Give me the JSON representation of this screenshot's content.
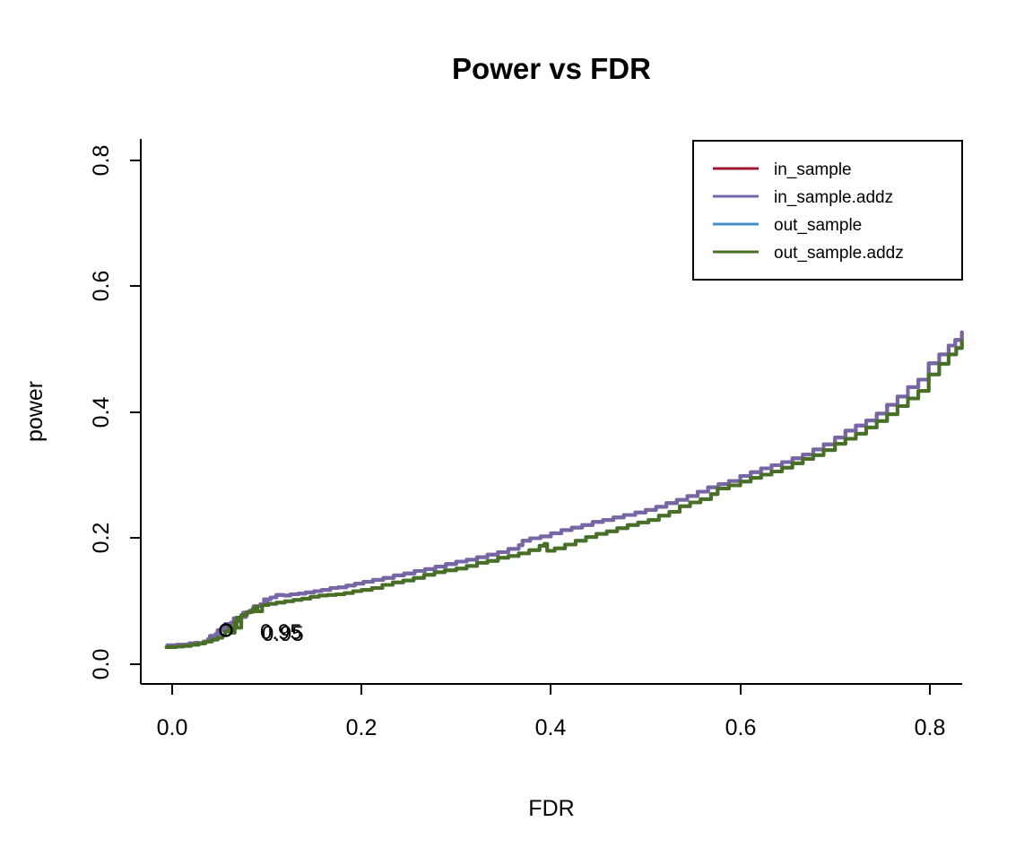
{
  "chart_data": {
    "type": "line",
    "title": "Power vs FDR",
    "xlabel": "FDR",
    "ylabel": "power",
    "xlim": [
      -0.033,
      0.834
    ],
    "ylim": [
      -0.031,
      0.834
    ],
    "grid": false,
    "legend_position": "top-right",
    "xtick_labels": [
      "0.0",
      "0.2",
      "0.4",
      "0.6",
      "0.8"
    ],
    "ytick_labels": [
      "0.0",
      "0.2",
      "0.4",
      "0.6",
      "0.8"
    ],
    "xticks": [
      0.0,
      0.2,
      0.4,
      0.6,
      0.8
    ],
    "yticks": [
      0.0,
      0.2,
      0.4,
      0.6,
      0.8
    ],
    "legend": [
      {
        "label": "in_sample",
        "color": "#a2132e"
      },
      {
        "label": "in_sample.addz",
        "color": "#7566a8"
      },
      {
        "label": "out_sample",
        "color": "#4090c5"
      },
      {
        "label": "out_sample.addz",
        "color": "#486f24"
      }
    ],
    "annotation": {
      "text": "0.95",
      "x": 0.095,
      "y": 0.037,
      "colors": [
        "#7566a8",
        "#486f24"
      ]
    },
    "marker": {
      "shape": "open-circle",
      "color": "#000000",
      "x": 0.057,
      "y": 0.054
    },
    "hidden_series": [
      {
        "name": "in_sample",
        "color": "#a2132e",
        "same_as": "in_sample.addz"
      },
      {
        "name": "out_sample",
        "color": "#4090c5",
        "same_as": "out_sample.addz"
      }
    ],
    "series": [
      {
        "name": "in_sample.addz",
        "color": "#7566a8",
        "points": [
          [
            -0.005,
            0.03
          ],
          [
            0.005,
            0.031
          ],
          [
            0.012,
            0.031
          ],
          [
            0.018,
            0.033
          ],
          [
            0.024,
            0.034
          ],
          [
            0.028,
            0.033
          ],
          [
            0.033,
            0.036
          ],
          [
            0.038,
            0.04
          ],
          [
            0.042,
            0.043
          ],
          [
            0.04,
            0.045
          ],
          [
            0.046,
            0.048
          ],
          [
            0.05,
            0.052
          ],
          [
            0.048,
            0.054
          ],
          [
            0.054,
            0.057
          ],
          [
            0.058,
            0.061
          ],
          [
            0.056,
            0.064
          ],
          [
            0.062,
            0.066
          ],
          [
            0.067,
            0.07
          ],
          [
            0.065,
            0.073
          ],
          [
            0.072,
            0.075
          ],
          [
            0.078,
            0.079
          ],
          [
            0.075,
            0.082
          ],
          [
            0.082,
            0.085
          ],
          [
            0.088,
            0.089
          ],
          [
            0.086,
            0.092
          ],
          [
            0.093,
            0.095
          ],
          [
            0.1,
            0.1
          ],
          [
            0.097,
            0.103
          ],
          [
            0.104,
            0.106
          ],
          [
            0.11,
            0.11
          ],
          [
            0.118,
            0.109
          ],
          [
            0.125,
            0.111
          ],
          [
            0.133,
            0.112
          ],
          [
            0.141,
            0.114
          ],
          [
            0.15,
            0.116
          ],
          [
            0.158,
            0.118
          ],
          [
            0.167,
            0.121
          ],
          [
            0.175,
            0.122
          ],
          [
            0.184,
            0.125
          ],
          [
            0.193,
            0.128
          ],
          [
            0.202,
            0.131
          ],
          [
            0.212,
            0.134
          ],
          [
            0.223,
            0.137
          ],
          [
            0.234,
            0.141
          ],
          [
            0.245,
            0.144
          ],
          [
            0.256,
            0.148
          ],
          [
            0.267,
            0.151
          ],
          [
            0.278,
            0.155
          ],
          [
            0.289,
            0.159
          ],
          [
            0.3,
            0.163
          ],
          [
            0.311,
            0.166
          ],
          [
            0.322,
            0.17
          ],
          [
            0.333,
            0.174
          ],
          [
            0.344,
            0.178
          ],
          [
            0.355,
            0.183
          ],
          [
            0.366,
            0.189
          ],
          [
            0.37,
            0.196
          ],
          [
            0.378,
            0.2
          ],
          [
            0.389,
            0.203
          ],
          [
            0.4,
            0.208
          ],
          [
            0.411,
            0.213
          ],
          [
            0.422,
            0.217
          ],
          [
            0.433,
            0.221
          ],
          [
            0.444,
            0.226
          ],
          [
            0.455,
            0.229
          ],
          [
            0.466,
            0.233
          ],
          [
            0.477,
            0.237
          ],
          [
            0.489,
            0.241
          ],
          [
            0.5,
            0.245
          ],
          [
            0.511,
            0.25
          ],
          [
            0.522,
            0.256
          ],
          [
            0.533,
            0.261
          ],
          [
            0.544,
            0.267
          ],
          [
            0.555,
            0.274
          ],
          [
            0.566,
            0.281
          ],
          [
            0.577,
            0.286
          ],
          [
            0.588,
            0.291
          ],
          [
            0.6,
            0.299
          ],
          [
            0.611,
            0.305
          ],
          [
            0.622,
            0.311
          ],
          [
            0.633,
            0.316
          ],
          [
            0.644,
            0.321
          ],
          [
            0.655,
            0.327
          ],
          [
            0.666,
            0.333
          ],
          [
            0.677,
            0.341
          ],
          [
            0.688,
            0.349
          ],
          [
            0.7,
            0.36
          ],
          [
            0.711,
            0.371
          ],
          [
            0.722,
            0.379
          ],
          [
            0.733,
            0.387
          ],
          [
            0.744,
            0.398
          ],
          [
            0.755,
            0.412
          ],
          [
            0.766,
            0.425
          ],
          [
            0.777,
            0.44
          ],
          [
            0.788,
            0.452
          ],
          [
            0.799,
            0.478
          ],
          [
            0.81,
            0.492
          ],
          [
            0.82,
            0.506
          ],
          [
            0.827,
            0.515
          ],
          [
            0.834,
            0.527
          ]
        ]
      },
      {
        "name": "out_sample.addz",
        "color": "#486f24",
        "points": [
          [
            -0.006,
            0.027
          ],
          [
            0.004,
            0.028
          ],
          [
            0.012,
            0.029
          ],
          [
            0.02,
            0.031
          ],
          [
            0.028,
            0.033
          ],
          [
            0.035,
            0.036
          ],
          [
            0.042,
            0.039
          ],
          [
            0.048,
            0.042
          ],
          [
            0.053,
            0.046
          ],
          [
            0.056,
            0.052
          ],
          [
            0.06,
            0.06
          ],
          [
            0.062,
            0.05
          ],
          [
            0.066,
            0.068
          ],
          [
            0.07,
            0.074
          ],
          [
            0.068,
            0.058
          ],
          [
            0.073,
            0.078
          ],
          [
            0.079,
            0.083
          ],
          [
            0.085,
            0.088
          ],
          [
            0.09,
            0.092
          ],
          [
            0.088,
            0.084
          ],
          [
            0.095,
            0.094
          ],
          [
            0.102,
            0.096
          ],
          [
            0.11,
            0.098
          ],
          [
            0.119,
            0.1
          ],
          [
            0.128,
            0.102
          ],
          [
            0.137,
            0.104
          ],
          [
            0.146,
            0.107
          ],
          [
            0.155,
            0.109
          ],
          [
            0.164,
            0.11
          ],
          [
            0.173,
            0.111
          ],
          [
            0.182,
            0.113
          ],
          [
            0.191,
            0.116
          ],
          [
            0.2,
            0.118
          ],
          [
            0.211,
            0.121
          ],
          [
            0.222,
            0.126
          ],
          [
            0.233,
            0.13
          ],
          [
            0.244,
            0.133
          ],
          [
            0.255,
            0.137
          ],
          [
            0.266,
            0.142
          ],
          [
            0.277,
            0.146
          ],
          [
            0.288,
            0.149
          ],
          [
            0.3,
            0.152
          ],
          [
            0.311,
            0.156
          ],
          [
            0.322,
            0.161
          ],
          [
            0.333,
            0.164
          ],
          [
            0.344,
            0.169
          ],
          [
            0.355,
            0.172
          ],
          [
            0.366,
            0.176
          ],
          [
            0.377,
            0.181
          ],
          [
            0.388,
            0.188
          ],
          [
            0.393,
            0.191
          ],
          [
            0.396,
            0.18
          ],
          [
            0.404,
            0.184
          ],
          [
            0.415,
            0.19
          ],
          [
            0.426,
            0.196
          ],
          [
            0.437,
            0.202
          ],
          [
            0.448,
            0.207
          ],
          [
            0.459,
            0.211
          ],
          [
            0.47,
            0.216
          ],
          [
            0.481,
            0.221
          ],
          [
            0.492,
            0.225
          ],
          [
            0.503,
            0.229
          ],
          [
            0.514,
            0.236
          ],
          [
            0.525,
            0.242
          ],
          [
            0.536,
            0.251
          ],
          [
            0.547,
            0.257
          ],
          [
            0.558,
            0.262
          ],
          [
            0.569,
            0.27
          ],
          [
            0.576,
            0.279
          ],
          [
            0.588,
            0.284
          ],
          [
            0.6,
            0.29
          ],
          [
            0.611,
            0.296
          ],
          [
            0.622,
            0.301
          ],
          [
            0.633,
            0.306
          ],
          [
            0.644,
            0.312
          ],
          [
            0.655,
            0.319
          ],
          [
            0.666,
            0.326
          ],
          [
            0.677,
            0.332
          ],
          [
            0.688,
            0.34
          ],
          [
            0.7,
            0.35
          ],
          [
            0.711,
            0.358
          ],
          [
            0.722,
            0.366
          ],
          [
            0.733,
            0.376
          ],
          [
            0.744,
            0.386
          ],
          [
            0.755,
            0.397
          ],
          [
            0.766,
            0.41
          ],
          [
            0.777,
            0.422
          ],
          [
            0.788,
            0.434
          ],
          [
            0.799,
            0.46
          ],
          [
            0.81,
            0.477
          ],
          [
            0.82,
            0.492
          ],
          [
            0.828,
            0.502
          ],
          [
            0.834,
            0.513
          ]
        ]
      }
    ]
  }
}
